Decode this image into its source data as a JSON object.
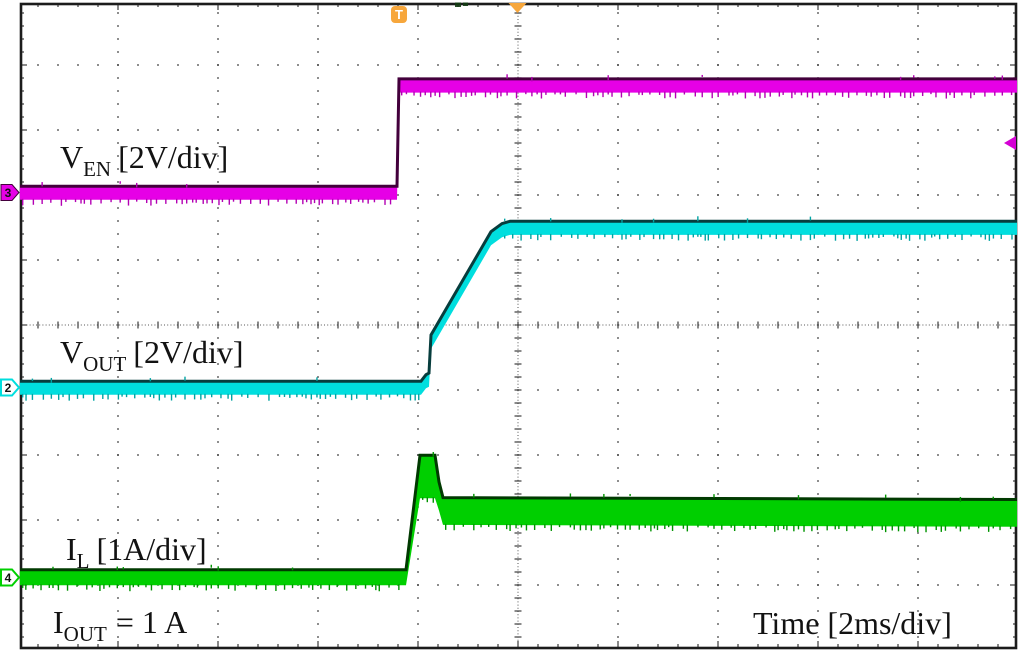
{
  "screen": {
    "background": "#ffffff",
    "border_color": "#1c1c1c",
    "grid_dot_color": "#3d3d3d"
  },
  "trigger": {
    "t_badge": "T",
    "badge_color": "#f7a73c",
    "position_marker_color": "#f7a73c",
    "level_arrow_color": "#d400d4"
  },
  "channels": [
    {
      "number": "3",
      "signal": "V_EN",
      "scale": "2V/div",
      "color": "#e600e6",
      "dark": "#43003c",
      "tick": "#b400b4",
      "marker_filled": true,
      "marker_text_color": "#ffffff"
    },
    {
      "number": "2",
      "signal": "V_OUT",
      "scale": "2V/div",
      "color": "#00dede",
      "dark": "#073d3d",
      "tick": "#00a4a4",
      "marker_filled": false,
      "marker_text_color": "#003f3f"
    },
    {
      "number": "4",
      "signal": "I_L",
      "scale": "1A/div",
      "color": "#00cf00",
      "dark": "#013a01",
      "tick": "#009400",
      "marker_filled": false,
      "marker_text_color": "#003c00"
    }
  ],
  "labels": {
    "ven": {
      "main": "V",
      "sub": "EN",
      "rest": "[2V/div]"
    },
    "vout": {
      "main": "V",
      "sub": "OUT",
      "rest": "[2V/div]"
    },
    "il": {
      "main": "I",
      "sub": "L",
      "rest": "[1A/div]"
    },
    "iout": {
      "main": "I",
      "sub": "OUT",
      "rest": "= 1 A"
    },
    "time": "Time [2ms/div]"
  },
  "chart_data": {
    "type": "line",
    "xlabel": "Time [2ms/div]",
    "x_units": "ms",
    "time_per_div_ms": 2,
    "x_range_ms": [
      -7.56,
      12.4
    ],
    "trigger_time_ms": 0,
    "grid": true,
    "divisions": {
      "horizontal": 10,
      "vertical": 10
    },
    "annotations": [
      "I_OUT = 1 A"
    ],
    "series": [
      {
        "id": "VEN",
        "name": "V_EN",
        "units": "V",
        "per_div": 2,
        "color": "#e600e6",
        "dark": "#43003c",
        "tick": "#b400b4",
        "description": "enable signal: low 0 V, steps to ~3.3 V at t=0",
        "points": [
          [
            -7.56,
            0,
            0.21
          ],
          [
            -0.02,
            0,
            0.21
          ],
          [
            0.02,
            3.3,
            0.21
          ],
          [
            12.4,
            3.3,
            0.21
          ]
        ]
      },
      {
        "id": "VOUT",
        "name": "V_OUT",
        "units": "V",
        "per_div": 2,
        "color": "#00dede",
        "dark": "#073d3d",
        "tick": "#00a4a4",
        "description": "output voltage: soft-start ramp from 0 V to ~4.9 V between t=0.6 ms and t=2.2 ms",
        "points": [
          [
            -7.56,
            0,
            0.21
          ],
          [
            0.46,
            0,
            0.21
          ],
          [
            0.56,
            0.2,
            0.21
          ],
          [
            0.62,
            0.25,
            0.21
          ],
          [
            0.66,
            1.42,
            0.21
          ],
          [
            1.86,
            4.6,
            0.21
          ],
          [
            2.08,
            4.85,
            0.21
          ],
          [
            2.24,
            4.92,
            0.21
          ],
          [
            12.4,
            4.92,
            0.21
          ]
        ]
      },
      {
        "id": "IL",
        "name": "I_L",
        "units": "A",
        "per_div": 1,
        "color": "#00cf00",
        "dark": "#013a01",
        "tick": "#009400",
        "description": "inductor current: 0 A, inrush peak ~1.9 A at start-up, settles to ~1 A (ripple band shown as third point value = half-width)",
        "points": [
          [
            -7.56,
            0,
            0.12
          ],
          [
            0.16,
            0,
            0.12
          ],
          [
            0.44,
            1.55,
            0.33
          ],
          [
            0.74,
            1.55,
            0.33
          ],
          [
            0.82,
            1.25,
            0.22
          ],
          [
            0.9,
            1.02,
            0.21
          ],
          [
            12.4,
            0.99,
            0.21
          ]
        ]
      }
    ]
  }
}
